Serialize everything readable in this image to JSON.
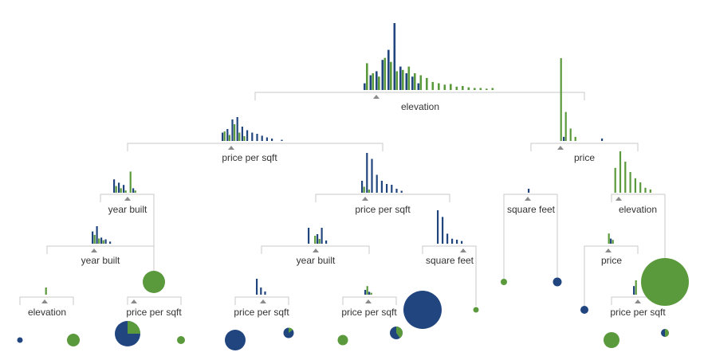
{
  "colors": {
    "class_a": "#21467f",
    "class_b": "#5b9a3c",
    "bracket": "#c8c8c8",
    "marker": "#8a8a8a",
    "text": "#333333"
  },
  "tree": {
    "root": {
      "feature": "elevation",
      "histogram": {
        "a": [
          0.1,
          0.22,
          0.28,
          0.45,
          0.6,
          1.0,
          0.35,
          0.25,
          0.2,
          0.1,
          0,
          0,
          0,
          0,
          0,
          0,
          0,
          0,
          0,
          0,
          0,
          0
        ],
        "b": [
          0.4,
          0.25,
          0.2,
          0.48,
          0.42,
          0.28,
          0.3,
          0.35,
          0.25,
          0.22,
          0.18,
          0.12,
          0.1,
          0.08,
          0.09,
          0.05,
          0.06,
          0.04,
          0.03,
          0.03,
          0.02,
          0.03
        ]
      }
    },
    "internal_nodes": [
      {
        "id": "n1",
        "feature": "price per sqft"
      },
      {
        "id": "n2",
        "feature": "price"
      },
      {
        "id": "n3",
        "feature": "year built"
      },
      {
        "id": "n4",
        "feature": "price per sqft"
      },
      {
        "id": "n5",
        "feature": "square feet"
      },
      {
        "id": "n6",
        "feature": "elevation"
      },
      {
        "id": "n7",
        "feature": "year built"
      },
      {
        "id": "n8",
        "feature": "year built"
      },
      {
        "id": "n9",
        "feature": "square feet"
      },
      {
        "id": "n10",
        "feature": "price"
      },
      {
        "id": "n11",
        "feature": "elevation"
      },
      {
        "id": "n12",
        "feature": "price per sqft"
      },
      {
        "id": "n13",
        "feature": "price per sqft"
      },
      {
        "id": "n14",
        "feature": "price per sqft"
      },
      {
        "id": "n15",
        "feature": "price per sqft"
      }
    ],
    "leaves": [
      {
        "id": "l1",
        "class_a_share": 1.0
      },
      {
        "id": "l2",
        "class_a_share": 0.0
      },
      {
        "id": "l3",
        "class_a_share": 0.75
      },
      {
        "id": "l4",
        "class_a_share": 0.0
      },
      {
        "id": "l5",
        "class_a_share": 1.0
      },
      {
        "id": "l6",
        "class_a_share": 0.85
      },
      {
        "id": "l7",
        "class_a_share": 0.0
      },
      {
        "id": "l8",
        "class_a_share": 0.6
      },
      {
        "id": "l9",
        "class_a_share": 0.0
      },
      {
        "id": "l10",
        "class_a_share": 1.0
      },
      {
        "id": "l11",
        "class_a_share": 0.0
      },
      {
        "id": "l12",
        "class_a_share": 0.0
      },
      {
        "id": "l13",
        "class_a_share": 1.0
      },
      {
        "id": "l14",
        "class_a_share": 1.0
      },
      {
        "id": "l15",
        "class_a_share": 0.0
      },
      {
        "id": "l16",
        "class_a_share": 0.0
      },
      {
        "id": "l17",
        "class_a_share": 0.5
      }
    ]
  }
}
